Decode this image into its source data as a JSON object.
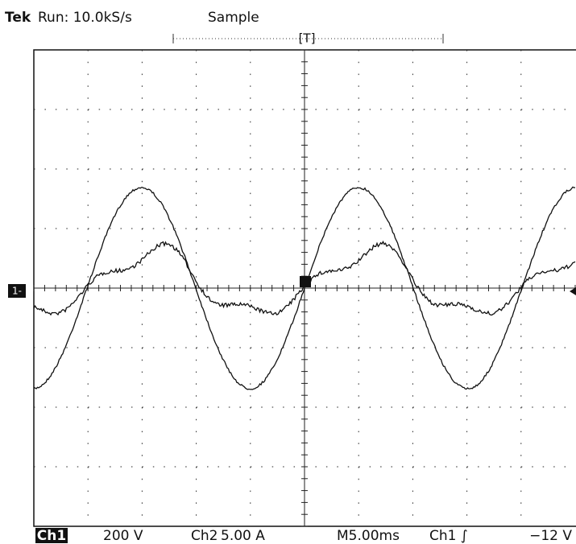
{
  "header": {
    "brand": "Tek",
    "status": "Run: 10.0kS/s",
    "mode": "Sample",
    "trigger_label": "[T]"
  },
  "markers": {
    "ground": "1-"
  },
  "footer": {
    "ch1_label": "Ch1",
    "ch1_scale": "200 V",
    "ch2_label": "Ch2",
    "ch2_scale": "5.00 A",
    "timebase": "M5.00ms",
    "trigger_source": "Ch1 ∫",
    "trigger_level": "−12 V"
  }
}
